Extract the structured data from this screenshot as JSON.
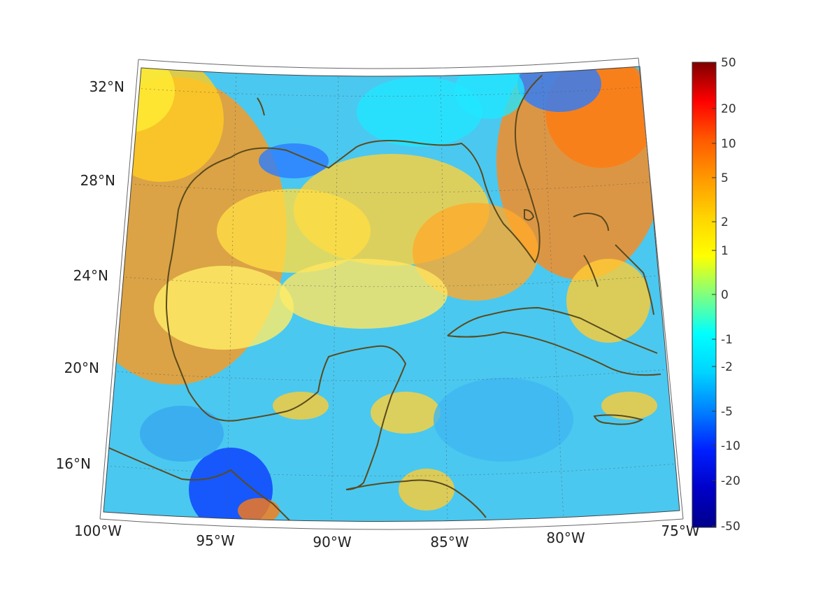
{
  "map": {
    "lat_labels": [
      "32°N",
      "28°N",
      "24°N",
      "20°N",
      "16°N"
    ],
    "lon_labels": [
      "100°W",
      "95°W",
      "90°W",
      "85°W",
      "80°W",
      "75°W"
    ],
    "extent": {
      "lon_min": -100,
      "lon_max": -75,
      "lat_min": 14,
      "lat_max": 33
    },
    "graticule": "dotted",
    "coastline_color": "#5b4a1e",
    "colormap": "jet"
  },
  "colorbar": {
    "ticks": [
      "50",
      "20",
      "10",
      "5",
      "2",
      "1",
      "0",
      "-1",
      "-2",
      "-5",
      "-10",
      "-20",
      "-50"
    ],
    "colors": [
      "#7f0000",
      "#ff0000",
      "#ff5a00",
      "#ff9900",
      "#ffd400",
      "#ffff00",
      "#7fff7f",
      "#00ffff",
      "#00d4ff",
      "#0080ff",
      "#0020ff",
      "#0000c8",
      "#00008b"
    ]
  }
}
